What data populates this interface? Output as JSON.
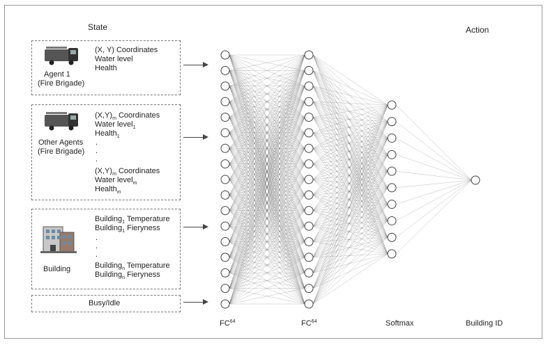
{
  "headers": {
    "state": "State",
    "action": "Action"
  },
  "agent1": {
    "name_line1": "Agent 1",
    "name_line2": "(Fire Brigade)",
    "attr1": "(X, Y) Coordinates",
    "attr2": "Water level",
    "attr3": "Health"
  },
  "other_agents": {
    "name_line1": "Other Agents",
    "name_line2": "(Fire Brigade)",
    "coord_a": "(X,Y)",
    "coord_a_sub": "m",
    "coord_a_rest": " Coordinates",
    "water_a": "Water level",
    "water_a_sub": "1",
    "health_a": "Health",
    "health_a_sub": "1",
    "dots": ".",
    "coord_b": "(X,Y)",
    "coord_b_sub": "m",
    "coord_b_rest": " Coordinates",
    "water_b": "Water level",
    "water_b_sub": "m",
    "health_b": "Health",
    "health_b_sub": "m"
  },
  "building": {
    "name": "Building",
    "b1_temp": "Building",
    "b1_temp_sub": "1",
    "b1_temp_rest": " Temperature",
    "b1_fiery": "Building",
    "b1_fiery_sub": "1",
    "b1_fiery_rest": " Fieryness",
    "dots": ".",
    "bn_temp": "Building",
    "bn_temp_sub": "n",
    "bn_temp_rest": " Temperature",
    "bn_fiery": "Building",
    "bn_fiery_sub": "n",
    "bn_fiery_rest": " Fieryness"
  },
  "busy": {
    "label": "Busy/Idle"
  },
  "layers": [
    {
      "label": "FC",
      "sup": "64",
      "nodes": 17
    },
    {
      "label": "FC",
      "sup": "64",
      "nodes": 17
    },
    {
      "label": "Softmax",
      "sup": "",
      "nodes": 10
    },
    {
      "label": "Building ID",
      "sup": "",
      "nodes": 1
    }
  ],
  "colors": {
    "line": "#555555",
    "node_stroke": "#444444",
    "node_fill": "#ffffff"
  },
  "icons": [
    "fire-truck-icon",
    "fire-truck-icon",
    "building-icon"
  ]
}
